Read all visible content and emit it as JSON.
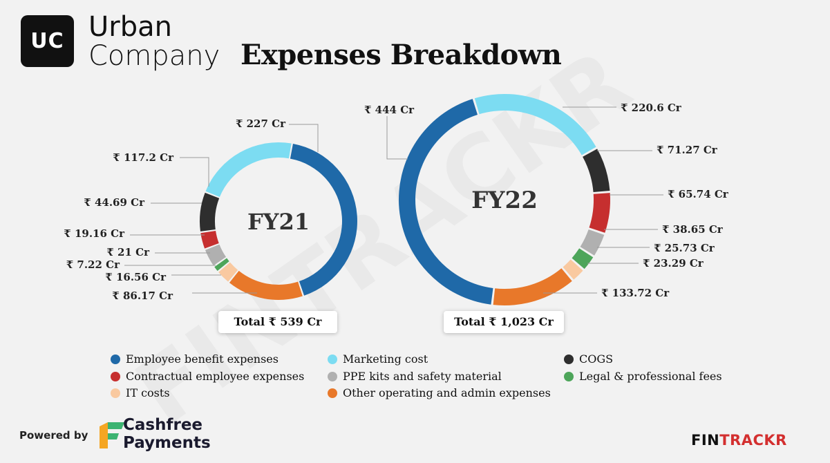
{
  "brand": {
    "logo": "UC",
    "line1": "Urban",
    "line2": "Company"
  },
  "title": "Expenses Breakdown",
  "watermark": "FINTRACKR",
  "chart_data": [
    {
      "type": "donut",
      "center_label": "FY21",
      "total_label": "Total ₹ 539 Cr",
      "slices": [
        {
          "name": "Employee benefit expenses",
          "value": 227,
          "label": "₹ 227 Cr",
          "color": "#1f69a8"
        },
        {
          "name": "Other operating and admin expenses",
          "value": 86.17,
          "label": "₹ 86.17 Cr",
          "color": "#e8782a"
        },
        {
          "name": "IT costs",
          "value": 16.56,
          "label": "₹ 16.56 Cr",
          "color": "#f9c9a0"
        },
        {
          "name": "Legal & professional fees",
          "value": 7.22,
          "label": "₹ 7.22 Cr",
          "color": "#4da55a"
        },
        {
          "name": "PPE kits and safety material",
          "value": 21,
          "label": "₹ 21 Cr",
          "color": "#b0b0b0"
        },
        {
          "name": "Contractual employee expenses",
          "value": 19.16,
          "label": "₹ 19.16 Cr",
          "color": "#c62f2f"
        },
        {
          "name": "COGS",
          "value": 44.69,
          "label": "₹ 44.69 Cr",
          "color": "#2e2e2e"
        },
        {
          "name": "Marketing cost",
          "value": 117.2,
          "label": "₹ 117.2 Cr",
          "color": "#7cdcf2"
        }
      ]
    },
    {
      "type": "donut",
      "center_label": "FY22",
      "total_label": "Total ₹ 1,023 Cr",
      "slices": [
        {
          "name": "Marketing cost",
          "value": 220.6,
          "label": "₹ 220.6 Cr",
          "color": "#7cdcf2"
        },
        {
          "name": "COGS",
          "value": 71.27,
          "label": "₹ 71.27 Cr",
          "color": "#2e2e2e"
        },
        {
          "name": "Contractual employee expenses",
          "value": 65.74,
          "label": "₹ 65.74 Cr",
          "color": "#c62f2f"
        },
        {
          "name": "PPE kits and safety material",
          "value": 38.65,
          "label": "₹ 38.65 Cr",
          "color": "#b0b0b0"
        },
        {
          "name": "Legal & professional fees",
          "value": 25.73,
          "label": "₹ 25.73 Cr",
          "color": "#4da55a"
        },
        {
          "name": "IT costs",
          "value": 23.29,
          "label": "₹ 23.29 Cr",
          "color": "#f9c9a0"
        },
        {
          "name": "Other operating and admin expenses",
          "value": 133.72,
          "label": "₹ 133.72 Cr",
          "color": "#e8782a"
        },
        {
          "name": "Employee benefit expenses",
          "value": 444,
          "label": "₹ 444 Cr",
          "color": "#1f69a8"
        }
      ]
    }
  ],
  "legend": [
    {
      "label": "Employee benefit expenses",
      "color": "#1f69a8"
    },
    {
      "label": "Marketing cost",
      "color": "#7cdcf2"
    },
    {
      "label": "COGS",
      "color": "#2e2e2e"
    },
    {
      "label": "Contractual employee expenses",
      "color": "#c62f2f"
    },
    {
      "label": "PPE kits and safety material",
      "color": "#b0b0b0"
    },
    {
      "label": "Legal & professional fees",
      "color": "#4da55a"
    },
    {
      "label": "IT costs",
      "color": "#f9c9a0"
    },
    {
      "label": "Other operating and admin expenses",
      "color": "#e8782a"
    }
  ],
  "footer": {
    "powered_by": "Powered by",
    "sponsor_line1": "Cashfree",
    "sponsor_line2": "Payments",
    "fintrackr_a": "FIN",
    "fintrackr_b": "TRACKR"
  }
}
